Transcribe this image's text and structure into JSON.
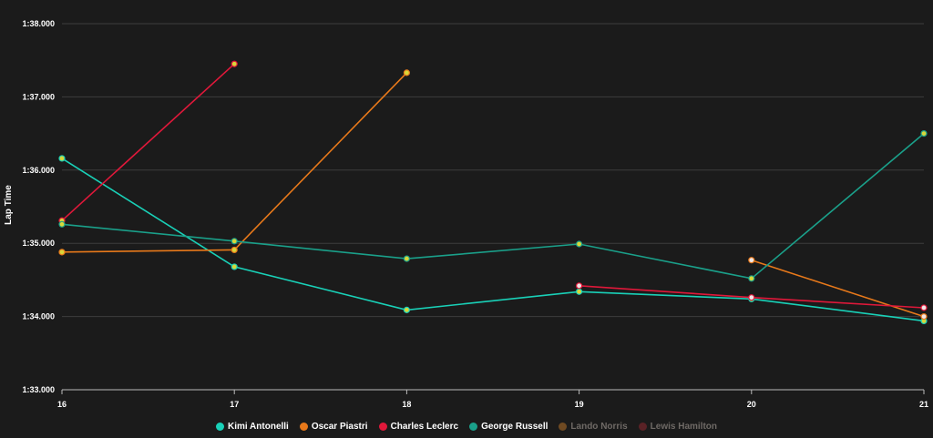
{
  "chart_data": {
    "type": "line",
    "ylabel": "Lap Time",
    "x": [
      16,
      17,
      18,
      19,
      20,
      21
    ],
    "x_tick_labels": [
      "16",
      "17",
      "18",
      "19",
      "20",
      "21"
    ],
    "ylim": [
      93.0,
      98.0
    ],
    "y_ticks": [
      93,
      94,
      95,
      96,
      97,
      98
    ],
    "y_tick_labels": [
      "1:33.000",
      "1:34.000",
      "1:35.000",
      "1:36.000",
      "1:37.000",
      "1:38.000"
    ],
    "grid": true,
    "legend_position": "bottom",
    "series": [
      {
        "name": "Kimi Antonelli",
        "color": "#19d1b8",
        "visible": true,
        "points": [
          [
            16,
            96.16
          ],
          [
            17,
            94.68
          ],
          [
            18,
            94.09
          ],
          [
            19,
            94.34
          ],
          [
            20,
            94.24
          ],
          [
            21,
            93.94
          ]
        ]
      },
      {
        "name": "Oscar Piastri",
        "color": "#e8791a",
        "visible": true,
        "points": [
          [
            16,
            94.88
          ],
          [
            17,
            94.91
          ],
          [
            18,
            97.33
          ],
          [
            20,
            94.77
          ],
          [
            21,
            94.0
          ]
        ]
      },
      {
        "name": "Charles Leclerc",
        "color": "#e0183a",
        "visible": true,
        "points": [
          [
            16,
            95.31
          ],
          [
            17,
            97.45
          ],
          [
            19,
            94.42
          ],
          [
            20,
            94.26
          ],
          [
            21,
            94.12
          ]
        ]
      },
      {
        "name": "George Russell",
        "color": "#1aa08a",
        "visible": true,
        "points": [
          [
            16,
            95.26
          ],
          [
            17,
            95.03
          ],
          [
            18,
            94.79
          ],
          [
            19,
            94.99
          ],
          [
            20,
            94.52
          ],
          [
            21,
            96.5
          ]
        ]
      },
      {
        "name": "Lando Norris",
        "color": "#6f4a22",
        "visible": false,
        "points": []
      },
      {
        "name": "Lewis Hamilton",
        "color": "#5a2226",
        "visible": false,
        "points": []
      }
    ],
    "colors": {
      "background": "#1b1b1b",
      "grid": "#3c3c3c",
      "marker_fill": "#d8d73a",
      "marker_fill_alt": "#f0e7e7"
    }
  }
}
